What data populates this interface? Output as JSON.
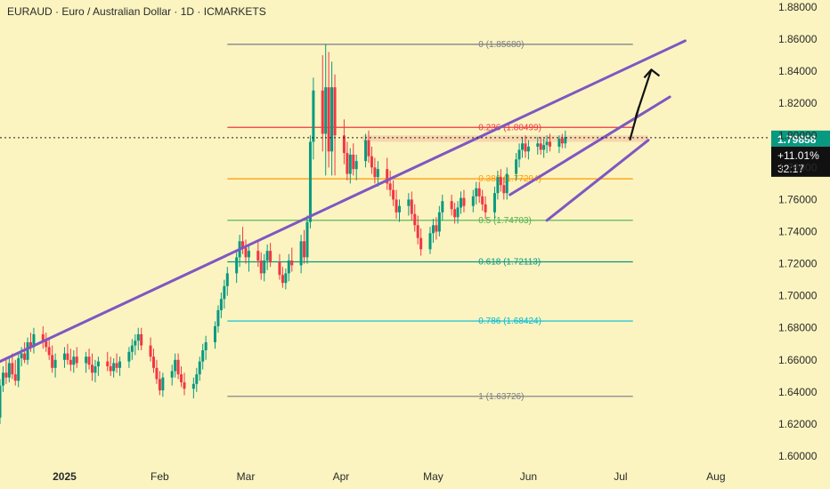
{
  "chart_data": {
    "type": "candlestick",
    "title": "EURAUD · Euro / Australian Dollar · 1D · ICMARKETS",
    "ylim": [
      1.6,
      1.88
    ],
    "y_ticks": [
      "1.88000",
      "1.86000",
      "1.84000",
      "1.82000",
      "1.80000",
      "1.78000",
      "1.76000",
      "1.74000",
      "1.72000",
      "1.70000",
      "1.68000",
      "1.66000",
      "1.64000",
      "1.62000",
      "1.60000"
    ],
    "x_ticks": [
      {
        "label": "2025",
        "day": 7,
        "bold": true
      },
      {
        "label": "Feb",
        "day": 38,
        "bold": false
      },
      {
        "label": "Mar",
        "day": 66,
        "bold": false
      },
      {
        "label": "Apr",
        "day": 97,
        "bold": false
      },
      {
        "label": "May",
        "day": 127,
        "bold": false
      },
      {
        "label": "Jun",
        "day": 158,
        "bold": false
      },
      {
        "label": "Jul",
        "day": 188,
        "bold": false
      },
      {
        "label": "Aug",
        "day": 219,
        "bold": false
      }
    ],
    "x_range_days": [
      -14,
      226
    ],
    "fib_levels": [
      {
        "ratio": "0",
        "value": 1.8568,
        "label": "0 (1.85680)",
        "color": "#787b86"
      },
      {
        "ratio": "0.236",
        "value": 1.80499,
        "label": "0.236 (1.80499)",
        "color": "#f23645"
      },
      {
        "ratio": "0.382",
        "value": 1.77294,
        "label": "0.382 (1.77294)",
        "color": "#ff9800"
      },
      {
        "ratio": "0.5",
        "value": 1.74703,
        "label": "0.5 (1.74703)",
        "color": "#4caf50"
      },
      {
        "ratio": "0.618",
        "value": 1.72113,
        "label": "0.618 (1.72113)",
        "color": "#089981"
      },
      {
        "ratio": "0.786",
        "value": 1.68424,
        "label": "0.786 (1.68424)",
        "color": "#00bcd4"
      },
      {
        "ratio": "1",
        "value": 1.63726,
        "label": "1 (1.63726)",
        "color": "#787b86"
      }
    ],
    "fib_day_range": [
      60,
      192
    ],
    "current_price": {
      "value": 1.79858,
      "label": "1.79858",
      "change": "+11.01%",
      "countdown": "32:17",
      "color": "#089981"
    },
    "trendlines": [
      {
        "name": "long-trendline",
        "from": {
          "day": -14,
          "y": 1.659
        },
        "to": {
          "day": 209,
          "y": 1.859
        },
        "color": "#7e57c2"
      },
      {
        "name": "wedge-upper",
        "from": {
          "day": 152,
          "y": 1.763
        },
        "to": {
          "day": 204,
          "y": 1.824
        },
        "color": "#7e57c2"
      },
      {
        "name": "wedge-lower",
        "from": {
          "day": 164,
          "y": 1.747
        },
        "to": {
          "day": 197,
          "y": 1.797
        },
        "color": "#7e57c2"
      }
    ],
    "resistance_zone": {
      "day_start": 104,
      "day_end": 197,
      "y_top": 1.8,
      "y_bottom": 1.796,
      "color": "#f5c9a6"
    },
    "projection_arrow": [
      {
        "day": 191,
        "y": 1.797
      },
      {
        "day": 194,
        "y": 1.818
      },
      {
        "day": 193,
        "y": 1.812
      },
      {
        "day": 198,
        "y": 1.841
      }
    ],
    "candle_colors": {
      "up": "#089981",
      "down": "#f23645"
    },
    "candles": [
      {
        "day": -14,
        "o": 1.624,
        "h": 1.648,
        "l": 1.62,
        "c": 1.644
      },
      {
        "day": -13,
        "o": 1.644,
        "h": 1.656,
        "l": 1.64,
        "c": 1.652
      },
      {
        "day": -12,
        "o": 1.652,
        "h": 1.66,
        "l": 1.645,
        "c": 1.649
      },
      {
        "day": -11,
        "o": 1.649,
        "h": 1.662,
        "l": 1.646,
        "c": 1.658
      },
      {
        "day": -10,
        "o": 1.658,
        "h": 1.664,
        "l": 1.648,
        "c": 1.651
      },
      {
        "day": -9,
        "o": 1.651,
        "h": 1.66,
        "l": 1.644,
        "c": 1.647
      },
      {
        "day": -8,
        "o": 1.647,
        "h": 1.664,
        "l": 1.643,
        "c": 1.661
      },
      {
        "day": -7,
        "o": 1.661,
        "h": 1.668,
        "l": 1.656,
        "c": 1.664
      },
      {
        "day": -6,
        "o": 1.664,
        "h": 1.671,
        "l": 1.658,
        "c": 1.66
      },
      {
        "day": -5,
        "o": 1.66,
        "h": 1.674,
        "l": 1.657,
        "c": 1.671
      },
      {
        "day": -4,
        "o": 1.671,
        "h": 1.677,
        "l": 1.665,
        "c": 1.668
      },
      {
        "day": -3,
        "o": 1.668,
        "h": 1.68,
        "l": 1.664,
        "c": 1.676
      },
      {
        "day": 0,
        "o": 1.676,
        "h": 1.681,
        "l": 1.667,
        "c": 1.672
      },
      {
        "day": 1,
        "o": 1.672,
        "h": 1.677,
        "l": 1.665,
        "c": 1.668
      },
      {
        "day": 2,
        "o": 1.668,
        "h": 1.673,
        "l": 1.66,
        "c": 1.663
      },
      {
        "day": 3,
        "o": 1.663,
        "h": 1.669,
        "l": 1.652,
        "c": 1.655
      },
      {
        "day": 4,
        "o": 1.655,
        "h": 1.664,
        "l": 1.649,
        "c": 1.66
      },
      {
        "day": 7,
        "o": 1.66,
        "h": 1.668,
        "l": 1.655,
        "c": 1.664
      },
      {
        "day": 8,
        "o": 1.664,
        "h": 1.67,
        "l": 1.657,
        "c": 1.66
      },
      {
        "day": 9,
        "o": 1.66,
        "h": 1.667,
        "l": 1.653,
        "c": 1.657
      },
      {
        "day": 10,
        "o": 1.657,
        "h": 1.666,
        "l": 1.652,
        "c": 1.662
      },
      {
        "day": 11,
        "o": 1.662,
        "h": 1.668,
        "l": 1.655,
        "c": 1.658
      },
      {
        "day": 14,
        "o": 1.658,
        "h": 1.665,
        "l": 1.652,
        "c": 1.662
      },
      {
        "day": 15,
        "o": 1.662,
        "h": 1.667,
        "l": 1.654,
        "c": 1.657
      },
      {
        "day": 16,
        "o": 1.657,
        "h": 1.664,
        "l": 1.647,
        "c": 1.652
      },
      {
        "day": 17,
        "o": 1.652,
        "h": 1.66,
        "l": 1.646,
        "c": 1.656
      },
      {
        "day": 18,
        "o": 1.656,
        "h": 1.662,
        "l": 1.65,
        "c": 1.659
      },
      {
        "day": 21,
        "o": 1.659,
        "h": 1.665,
        "l": 1.653,
        "c": 1.656
      },
      {
        "day": 22,
        "o": 1.656,
        "h": 1.662,
        "l": 1.65,
        "c": 1.653
      },
      {
        "day": 23,
        "o": 1.653,
        "h": 1.661,
        "l": 1.649,
        "c": 1.658
      },
      {
        "day": 24,
        "o": 1.658,
        "h": 1.664,
        "l": 1.652,
        "c": 1.655
      },
      {
        "day": 25,
        "o": 1.655,
        "h": 1.662,
        "l": 1.65,
        "c": 1.659
      },
      {
        "day": 28,
        "o": 1.659,
        "h": 1.668,
        "l": 1.655,
        "c": 1.665
      },
      {
        "day": 29,
        "o": 1.665,
        "h": 1.673,
        "l": 1.66,
        "c": 1.669
      },
      {
        "day": 30,
        "o": 1.669,
        "h": 1.676,
        "l": 1.663,
        "c": 1.672
      },
      {
        "day": 31,
        "o": 1.672,
        "h": 1.68,
        "l": 1.666,
        "c": 1.676
      },
      {
        "day": 32,
        "o": 1.676,
        "h": 1.68,
        "l": 1.666,
        "c": 1.669
      },
      {
        "day": 35,
        "o": 1.669,
        "h": 1.674,
        "l": 1.659,
        "c": 1.662
      },
      {
        "day": 36,
        "o": 1.662,
        "h": 1.667,
        "l": 1.652,
        "c": 1.655
      },
      {
        "day": 37,
        "o": 1.655,
        "h": 1.66,
        "l": 1.645,
        "c": 1.648
      },
      {
        "day": 38,
        "o": 1.648,
        "h": 1.653,
        "l": 1.638,
        "c": 1.641
      },
      {
        "day": 39,
        "o": 1.641,
        "h": 1.652,
        "l": 1.637,
        "c": 1.649
      },
      {
        "day": 42,
        "o": 1.649,
        "h": 1.657,
        "l": 1.644,
        "c": 1.653
      },
      {
        "day": 43,
        "o": 1.653,
        "h": 1.664,
        "l": 1.649,
        "c": 1.66
      },
      {
        "day": 44,
        "o": 1.66,
        "h": 1.664,
        "l": 1.648,
        "c": 1.651
      },
      {
        "day": 45,
        "o": 1.651,
        "h": 1.656,
        "l": 1.643,
        "c": 1.646
      },
      {
        "day": 46,
        "o": 1.646,
        "h": 1.652,
        "l": 1.638,
        "c": 1.642
      },
      {
        "day": 49,
        "o": 1.642,
        "h": 1.649,
        "l": 1.636,
        "c": 1.645
      },
      {
        "day": 50,
        "o": 1.645,
        "h": 1.655,
        "l": 1.64,
        "c": 1.651
      },
      {
        "day": 51,
        "o": 1.651,
        "h": 1.662,
        "l": 1.647,
        "c": 1.659
      },
      {
        "day": 52,
        "o": 1.659,
        "h": 1.67,
        "l": 1.654,
        "c": 1.666
      },
      {
        "day": 53,
        "o": 1.666,
        "h": 1.675,
        "l": 1.66,
        "c": 1.671
      },
      {
        "day": 56,
        "o": 1.671,
        "h": 1.684,
        "l": 1.667,
        "c": 1.681
      },
      {
        "day": 57,
        "o": 1.681,
        "h": 1.694,
        "l": 1.677,
        "c": 1.691
      },
      {
        "day": 58,
        "o": 1.691,
        "h": 1.702,
        "l": 1.686,
        "c": 1.698
      },
      {
        "day": 59,
        "o": 1.698,
        "h": 1.71,
        "l": 1.692,
        "c": 1.706
      },
      {
        "day": 60,
        "o": 1.706,
        "h": 1.718,
        "l": 1.7,
        "c": 1.714
      },
      {
        "day": 63,
        "o": 1.714,
        "h": 1.728,
        "l": 1.708,
        "c": 1.724
      },
      {
        "day": 64,
        "o": 1.724,
        "h": 1.738,
        "l": 1.718,
        "c": 1.734
      },
      {
        "day": 65,
        "o": 1.734,
        "h": 1.743,
        "l": 1.726,
        "c": 1.73
      },
      {
        "day": 66,
        "o": 1.73,
        "h": 1.735,
        "l": 1.72,
        "c": 1.724
      },
      {
        "day": 67,
        "o": 1.724,
        "h": 1.731,
        "l": 1.715,
        "c": 1.728
      },
      {
        "day": 70,
        "o": 1.728,
        "h": 1.734,
        "l": 1.718,
        "c": 1.722
      },
      {
        "day": 71,
        "o": 1.722,
        "h": 1.727,
        "l": 1.71,
        "c": 1.714
      },
      {
        "day": 72,
        "o": 1.714,
        "h": 1.726,
        "l": 1.709,
        "c": 1.722
      },
      {
        "day": 73,
        "o": 1.722,
        "h": 1.732,
        "l": 1.716,
        "c": 1.728
      },
      {
        "day": 74,
        "o": 1.728,
        "h": 1.733,
        "l": 1.718,
        "c": 1.721
      },
      {
        "day": 77,
        "o": 1.721,
        "h": 1.726,
        "l": 1.71,
        "c": 1.713
      },
      {
        "day": 78,
        "o": 1.713,
        "h": 1.718,
        "l": 1.705,
        "c": 1.708
      },
      {
        "day": 79,
        "o": 1.708,
        "h": 1.717,
        "l": 1.704,
        "c": 1.714
      },
      {
        "day": 80,
        "o": 1.714,
        "h": 1.726,
        "l": 1.709,
        "c": 1.722
      },
      {
        "day": 81,
        "o": 1.722,
        "h": 1.73,
        "l": 1.715,
        "c": 1.719
      },
      {
        "day": 84,
        "o": 1.719,
        "h": 1.738,
        "l": 1.714,
        "c": 1.734
      },
      {
        "day": 85,
        "o": 1.734,
        "h": 1.741,
        "l": 1.72,
        "c": 1.724
      },
      {
        "day": 86,
        "o": 1.724,
        "h": 1.75,
        "l": 1.72,
        "c": 1.746
      },
      {
        "day": 87,
        "o": 1.746,
        "h": 1.8,
        "l": 1.742,
        "c": 1.796
      },
      {
        "day": 88,
        "o": 1.796,
        "h": 1.836,
        "l": 1.785,
        "c": 1.828
      },
      {
        "day": 91,
        "o": 1.828,
        "h": 1.85,
        "l": 1.79,
        "c": 1.801
      },
      {
        "day": 92,
        "o": 1.801,
        "h": 1.857,
        "l": 1.775,
        "c": 1.83
      },
      {
        "day": 93,
        "o": 1.83,
        "h": 1.852,
        "l": 1.78,
        "c": 1.79
      },
      {
        "day": 94,
        "o": 1.79,
        "h": 1.846,
        "l": 1.775,
        "c": 1.83
      },
      {
        "day": 95,
        "o": 1.83,
        "h": 1.838,
        "l": 1.775,
        "c": 1.8
      },
      {
        "day": 98,
        "o": 1.8,
        "h": 1.81,
        "l": 1.782,
        "c": 1.789
      },
      {
        "day": 99,
        "o": 1.789,
        "h": 1.796,
        "l": 1.772,
        "c": 1.776
      },
      {
        "day": 100,
        "o": 1.776,
        "h": 1.792,
        "l": 1.77,
        "c": 1.788
      },
      {
        "day": 101,
        "o": 1.788,
        "h": 1.795,
        "l": 1.775,
        "c": 1.779
      },
      {
        "day": 102,
        "o": 1.779,
        "h": 1.788,
        "l": 1.772,
        "c": 1.784
      },
      {
        "day": 105,
        "o": 1.784,
        "h": 1.801,
        "l": 1.78,
        "c": 1.797
      },
      {
        "day": 106,
        "o": 1.797,
        "h": 1.803,
        "l": 1.783,
        "c": 1.787
      },
      {
        "day": 107,
        "o": 1.787,
        "h": 1.793,
        "l": 1.776,
        "c": 1.78
      },
      {
        "day": 108,
        "o": 1.78,
        "h": 1.786,
        "l": 1.77,
        "c": 1.774
      },
      {
        "day": 109,
        "o": 1.774,
        "h": 1.784,
        "l": 1.768,
        "c": 1.779
      },
      {
        "day": 112,
        "o": 1.779,
        "h": 1.786,
        "l": 1.766,
        "c": 1.77
      },
      {
        "day": 113,
        "o": 1.77,
        "h": 1.778,
        "l": 1.762,
        "c": 1.766
      },
      {
        "day": 114,
        "o": 1.766,
        "h": 1.772,
        "l": 1.756,
        "c": 1.76
      },
      {
        "day": 115,
        "o": 1.76,
        "h": 1.766,
        "l": 1.748,
        "c": 1.752
      },
      {
        "day": 116,
        "o": 1.752,
        "h": 1.76,
        "l": 1.746,
        "c": 1.756
      },
      {
        "day": 119,
        "o": 1.756,
        "h": 1.764,
        "l": 1.75,
        "c": 1.76
      },
      {
        "day": 120,
        "o": 1.76,
        "h": 1.765,
        "l": 1.747,
        "c": 1.751
      },
      {
        "day": 121,
        "o": 1.751,
        "h": 1.757,
        "l": 1.74,
        "c": 1.744
      },
      {
        "day": 122,
        "o": 1.744,
        "h": 1.75,
        "l": 1.732,
        "c": 1.736
      },
      {
        "day": 123,
        "o": 1.736,
        "h": 1.742,
        "l": 1.725,
        "c": 1.729
      },
      {
        "day": 126,
        "o": 1.729,
        "h": 1.743,
        "l": 1.726,
        "c": 1.739
      },
      {
        "day": 127,
        "o": 1.739,
        "h": 1.748,
        "l": 1.733,
        "c": 1.744
      },
      {
        "day": 128,
        "o": 1.744,
        "h": 1.749,
        "l": 1.735,
        "c": 1.74
      },
      {
        "day": 129,
        "o": 1.74,
        "h": 1.756,
        "l": 1.737,
        "c": 1.752
      },
      {
        "day": 130,
        "o": 1.752,
        "h": 1.763,
        "l": 1.747,
        "c": 1.759
      },
      {
        "day": 133,
        "o": 1.759,
        "h": 1.763,
        "l": 1.75,
        "c": 1.754
      },
      {
        "day": 134,
        "o": 1.754,
        "h": 1.758,
        "l": 1.745,
        "c": 1.749
      },
      {
        "day": 135,
        "o": 1.749,
        "h": 1.759,
        "l": 1.745,
        "c": 1.755
      },
      {
        "day": 136,
        "o": 1.755,
        "h": 1.765,
        "l": 1.751,
        "c": 1.761
      },
      {
        "day": 137,
        "o": 1.761,
        "h": 1.766,
        "l": 1.752,
        "c": 1.756
      },
      {
        "day": 140,
        "o": 1.756,
        "h": 1.766,
        "l": 1.752,
        "c": 1.762
      },
      {
        "day": 141,
        "o": 1.762,
        "h": 1.771,
        "l": 1.757,
        "c": 1.767
      },
      {
        "day": 142,
        "o": 1.767,
        "h": 1.771,
        "l": 1.758,
        "c": 1.762
      },
      {
        "day": 143,
        "o": 1.762,
        "h": 1.766,
        "l": 1.753,
        "c": 1.757
      },
      {
        "day": 144,
        "o": 1.757,
        "h": 1.762,
        "l": 1.748,
        "c": 1.752
      },
      {
        "day": 147,
        "o": 1.752,
        "h": 1.768,
        "l": 1.748,
        "c": 1.764
      },
      {
        "day": 148,
        "o": 1.764,
        "h": 1.778,
        "l": 1.76,
        "c": 1.774
      },
      {
        "day": 149,
        "o": 1.774,
        "h": 1.779,
        "l": 1.765,
        "c": 1.769
      },
      {
        "day": 150,
        "o": 1.769,
        "h": 1.774,
        "l": 1.76,
        "c": 1.764
      },
      {
        "day": 151,
        "o": 1.764,
        "h": 1.78,
        "l": 1.76,
        "c": 1.776
      },
      {
        "day": 154,
        "o": 1.776,
        "h": 1.789,
        "l": 1.772,
        "c": 1.785
      },
      {
        "day": 155,
        "o": 1.785,
        "h": 1.795,
        "l": 1.78,
        "c": 1.791
      },
      {
        "day": 156,
        "o": 1.791,
        "h": 1.799,
        "l": 1.786,
        "c": 1.795
      },
      {
        "day": 157,
        "o": 1.795,
        "h": 1.8,
        "l": 1.786,
        "c": 1.79
      },
      {
        "day": 158,
        "o": 1.79,
        "h": 1.797,
        "l": 1.785,
        "c": 1.793
      },
      {
        "day": 161,
        "o": 1.793,
        "h": 1.799,
        "l": 1.788,
        "c": 1.795
      },
      {
        "day": 162,
        "o": 1.795,
        "h": 1.799,
        "l": 1.788,
        "c": 1.791
      },
      {
        "day": 163,
        "o": 1.791,
        "h": 1.798,
        "l": 1.786,
        "c": 1.794
      },
      {
        "day": 164,
        "o": 1.794,
        "h": 1.8,
        "l": 1.789,
        "c": 1.796
      },
      {
        "day": 165,
        "o": 1.796,
        "h": 1.801,
        "l": 1.79,
        "c": 1.793
      },
      {
        "day": 168,
        "o": 1.793,
        "h": 1.8,
        "l": 1.789,
        "c": 1.798
      },
      {
        "day": 169,
        "o": 1.798,
        "h": 1.801,
        "l": 1.792,
        "c": 1.795
      },
      {
        "day": 170,
        "o": 1.795,
        "h": 1.803,
        "l": 1.792,
        "c": 1.799
      }
    ]
  }
}
